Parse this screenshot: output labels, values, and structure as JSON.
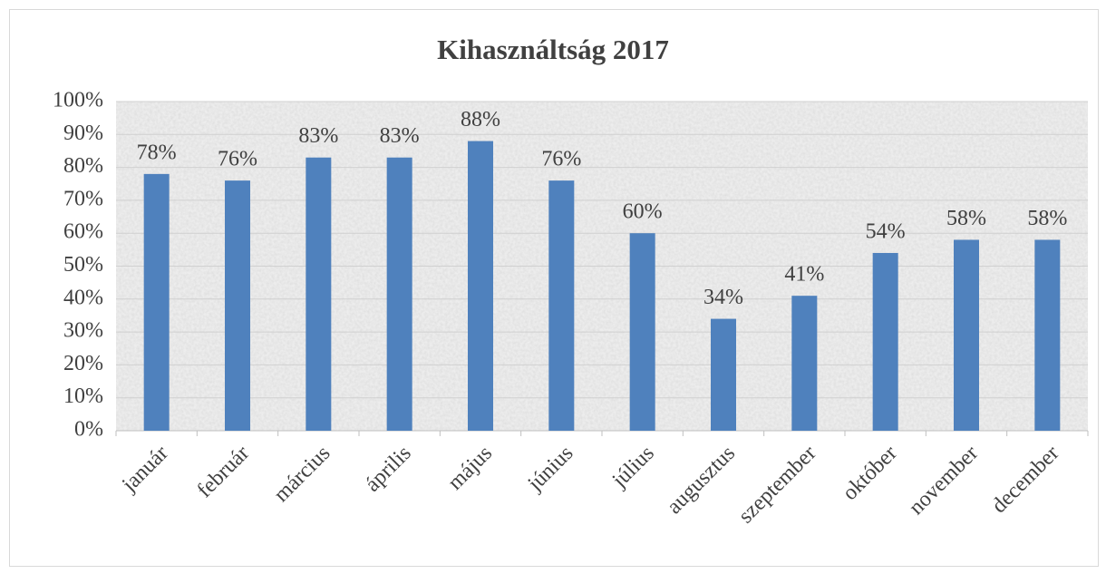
{
  "chart_data": {
    "type": "bar",
    "title": "Kihasználtság 2017",
    "categories": [
      "január",
      "február",
      "március",
      "április",
      "május",
      "június",
      "július",
      "augusztus",
      "szeptember",
      "október",
      "november",
      "december"
    ],
    "values": [
      78,
      76,
      83,
      83,
      88,
      76,
      60,
      34,
      41,
      54,
      58,
      58
    ],
    "value_labels": [
      "78%",
      "76%",
      "83%",
      "83%",
      "88%",
      "76%",
      "60%",
      "34%",
      "41%",
      "54%",
      "58%",
      "58%"
    ],
    "color": "#4f81bd",
    "ylim": [
      0,
      100
    ],
    "yticks": [
      {
        "value": 0,
        "label": "0%"
      },
      {
        "value": 10,
        "label": "10%"
      },
      {
        "value": 20,
        "label": "20%"
      },
      {
        "value": 30,
        "label": "30%"
      },
      {
        "value": 40,
        "label": "40%"
      },
      {
        "value": 50,
        "label": "50%"
      },
      {
        "value": 60,
        "label": "60%"
      },
      {
        "value": 70,
        "label": "70%"
      },
      {
        "value": 80,
        "label": "80%"
      },
      {
        "value": 90,
        "label": "90%"
      },
      {
        "value": 100,
        "label": "100%"
      }
    ],
    "grid": true
  }
}
